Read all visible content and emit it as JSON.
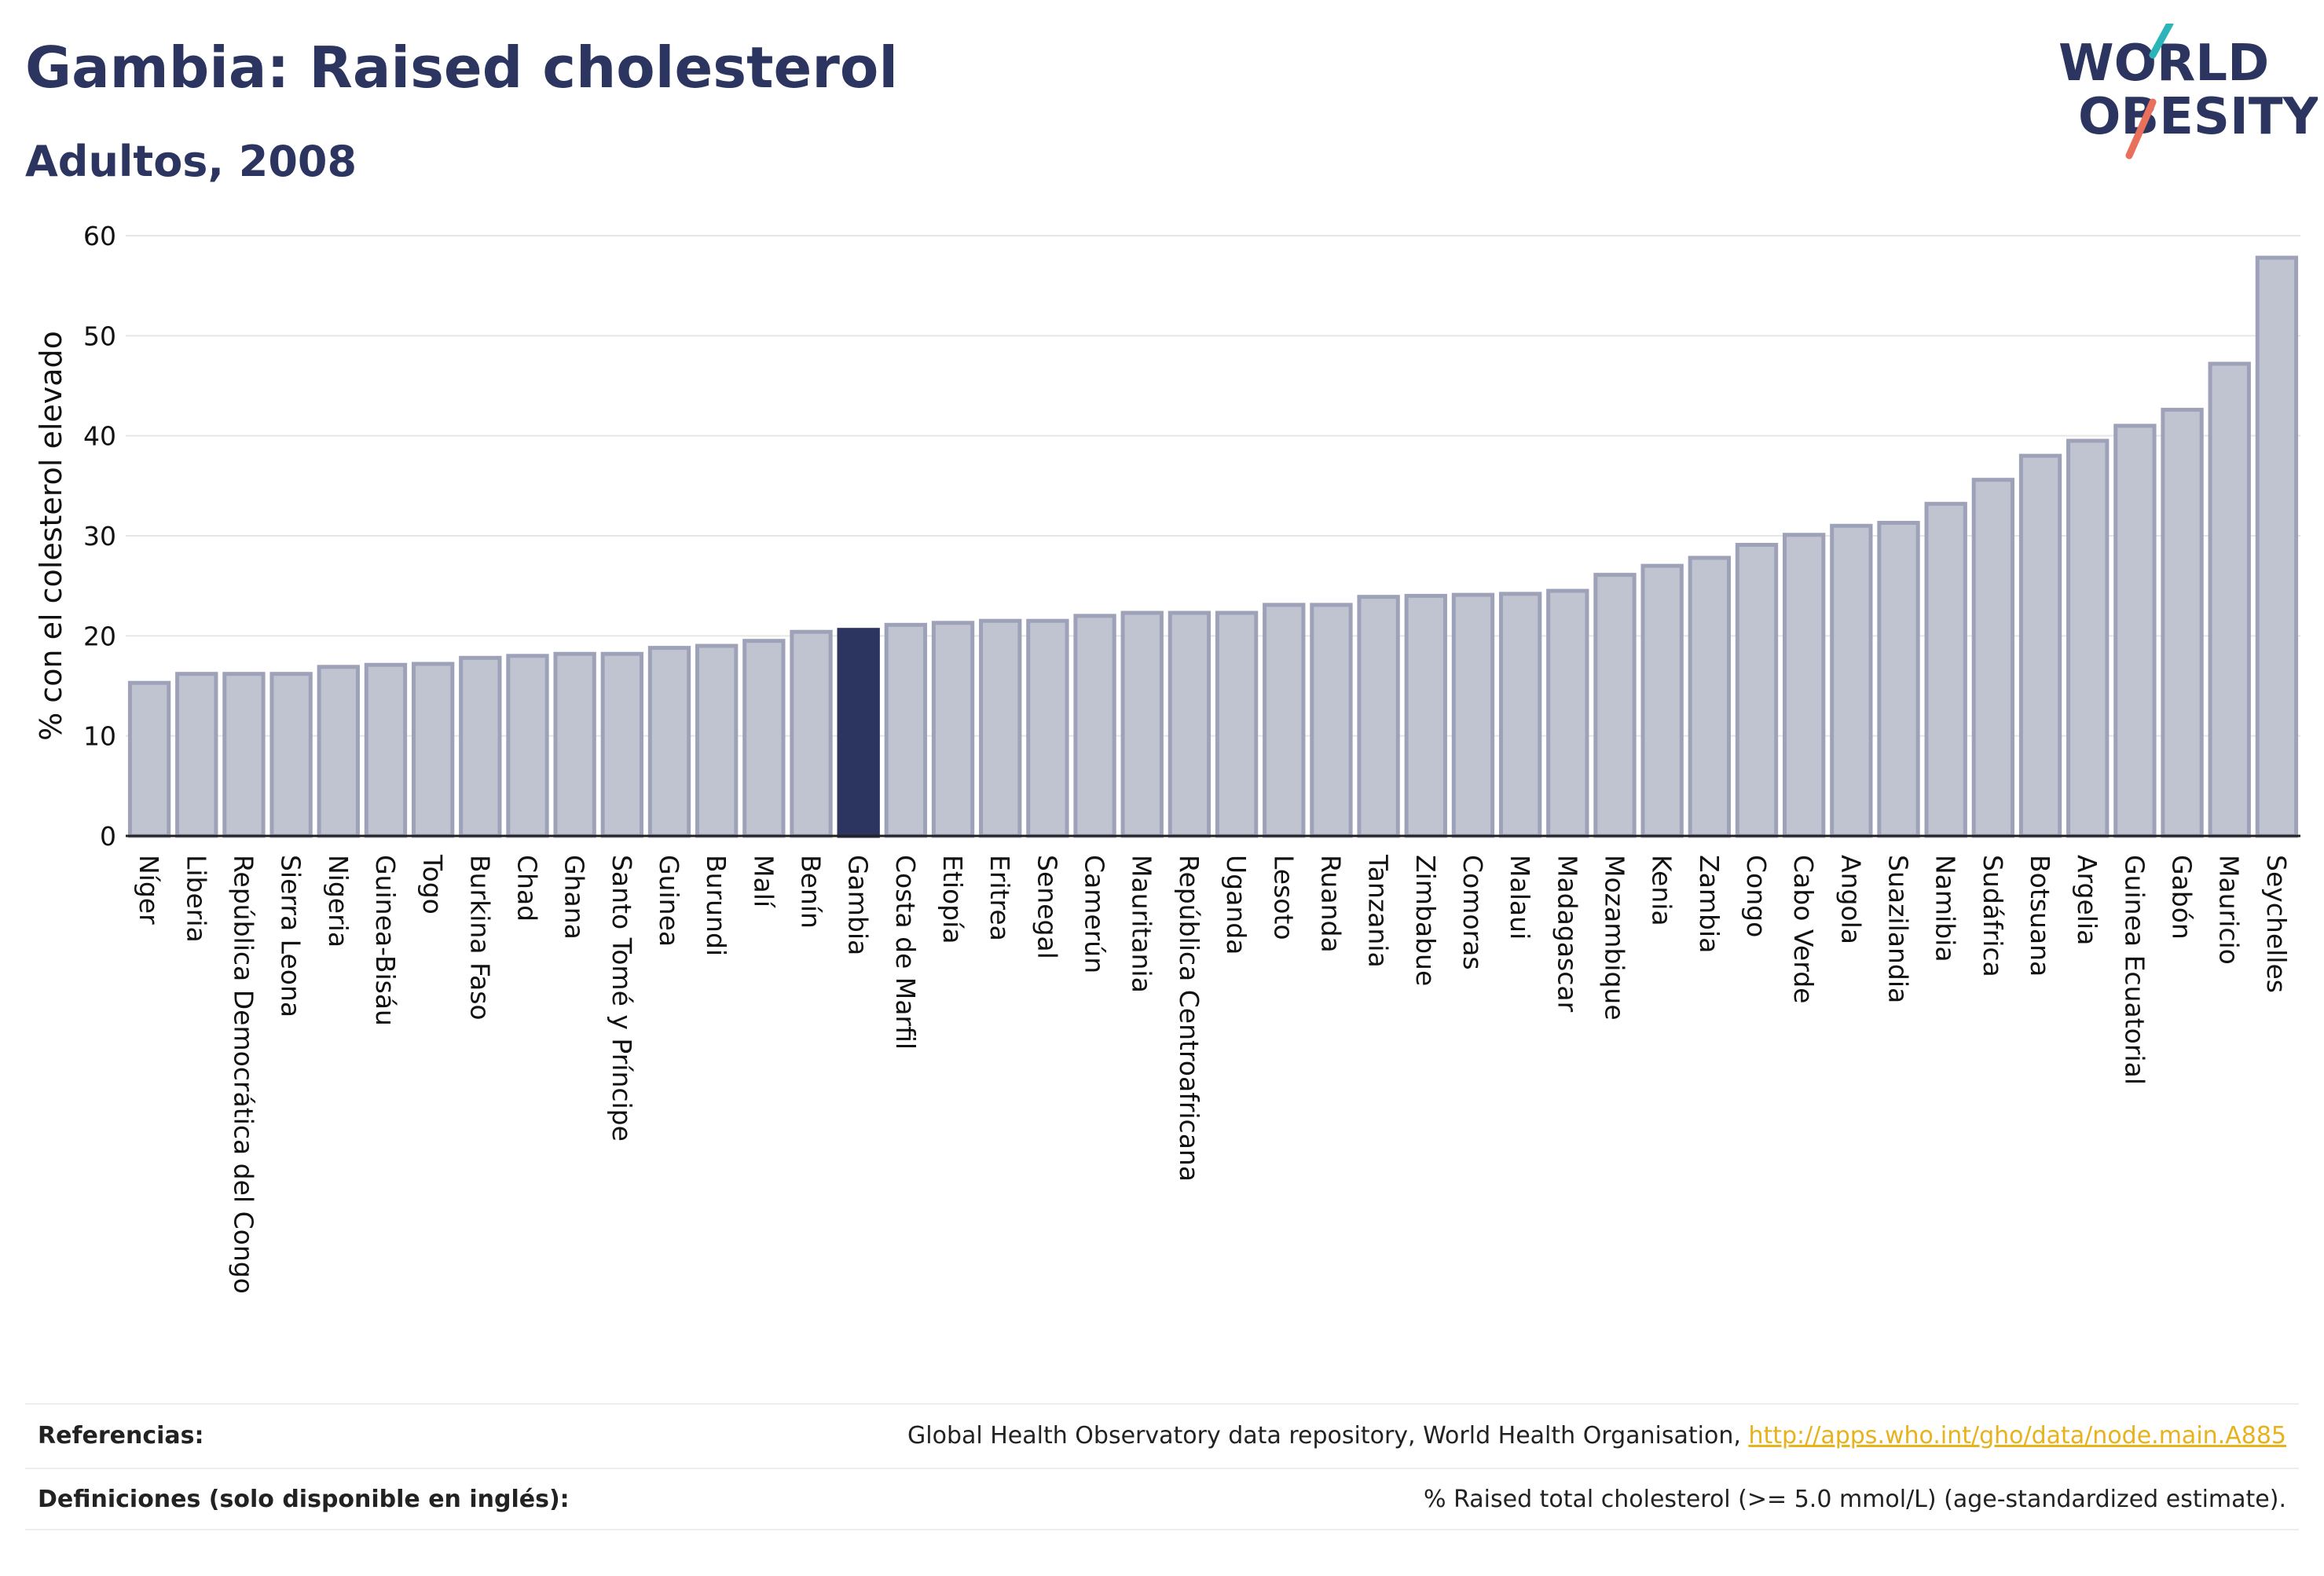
{
  "header": {
    "title": "Gambia: Raised cholesterol",
    "subtitle": "Adultos, 2008"
  },
  "logo": {
    "line1": "WORLD",
    "line2": "OBESITY",
    "text_color": "#2b355f",
    "slash_top_color": "#2bb5b8",
    "slash_bottom_color": "#e8705c"
  },
  "colors": {
    "bar_fill": "#c0c3d0",
    "bar_stroke": "#9ea2b8",
    "highlight": "#2b355f",
    "grid": "#e6e6e6"
  },
  "chart_data": {
    "type": "bar",
    "title": "Gambia: Raised cholesterol",
    "subtitle": "Adultos, 2008",
    "xlabel": "",
    "ylabel": "% con el colesterol elevado",
    "ylim": [
      0,
      60
    ],
    "yticks": [
      0,
      10,
      20,
      30,
      40,
      50,
      60
    ],
    "grid": true,
    "highlight": "Gambia",
    "categories": [
      "Níger",
      "Liberia",
      "República Democrática del Congo",
      "Sierra Leona",
      "Nigeria",
      "Guinea-Bisáu",
      "Togo",
      "Burkina Faso",
      "Chad",
      "Ghana",
      "Santo Tomé y Príncipe",
      "Guinea",
      "Burundi",
      "Malí",
      "Benín",
      "Gambia",
      "Costa de Marfil",
      "Etiopía",
      "Eritrea",
      "Senegal",
      "Camerún",
      "Mauritania",
      "República Centroafricana",
      "Uganda",
      "Lesoto",
      "Ruanda",
      "Tanzania",
      "Zimbabue",
      "Comoras",
      "Malaui",
      "Madagascar",
      "Mozambique",
      "Kenia",
      "Zambia",
      "Congo",
      "Cabo Verde",
      "Angola",
      "Suazilandia",
      "Namibia",
      "Sudáfrica",
      "Botsuana",
      "Argelia",
      "Guinea Ecuatorial",
      "Gabón",
      "Mauricio",
      "Seychelles"
    ],
    "values": [
      15.3,
      16.2,
      16.2,
      16.2,
      16.9,
      17.1,
      17.2,
      17.8,
      18.0,
      18.2,
      18.2,
      18.8,
      19.0,
      19.5,
      20.4,
      20.6,
      21.1,
      21.3,
      21.5,
      21.5,
      22.0,
      22.3,
      22.3,
      22.3,
      23.1,
      23.1,
      23.9,
      24.0,
      24.1,
      24.2,
      24.5,
      26.1,
      27.0,
      27.8,
      29.1,
      30.1,
      31.0,
      31.3,
      33.2,
      35.6,
      38.0,
      39.5,
      41.0,
      42.6,
      47.2,
      57.8
    ]
  },
  "footer": {
    "references_label": "Referencias:",
    "references_text": "Global Health Observatory data repository, World Health Organisation, ",
    "references_link": "http://apps.who.int/gho/data/node.main.A885",
    "definitions_label": "Definiciones (solo disponible en inglés):",
    "definitions_text": "% Raised total cholesterol (>= 5.0 mmol/L) (age-standardized estimate)."
  }
}
